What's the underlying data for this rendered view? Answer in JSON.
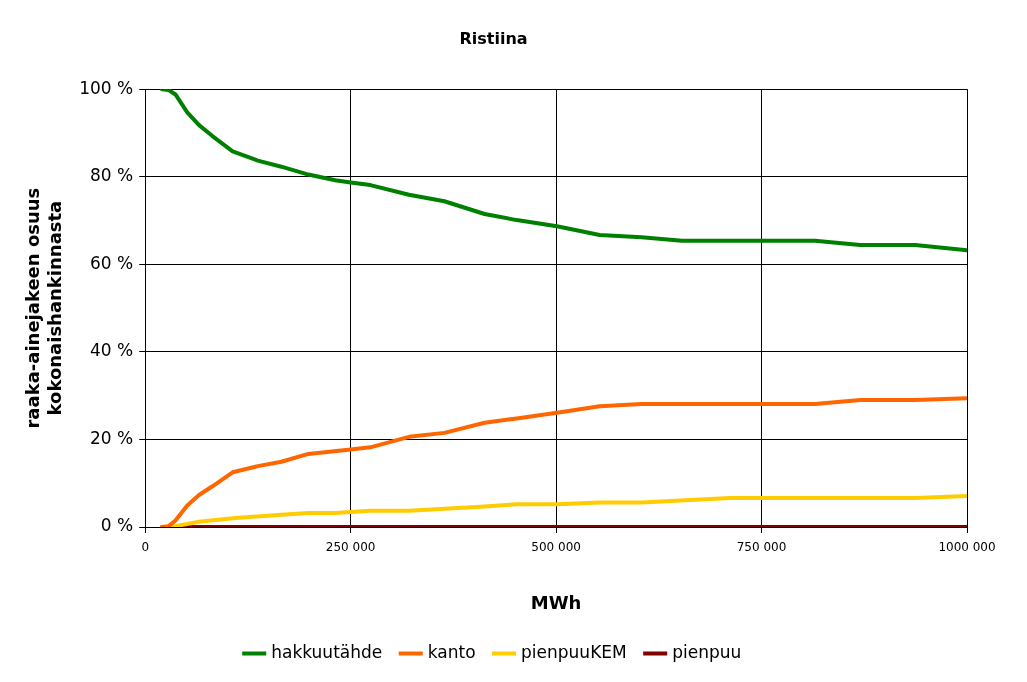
{
  "chart_data": {
    "type": "line",
    "title": "Ristiina",
    "xlabel": "MWh",
    "ylabel": "raaka-ainejakeen osuus kokonaishankinnasta",
    "xlim": [
      0,
      1000000
    ],
    "xticks": [
      0,
      {
        "value": 250000,
        "label": "250 000"
      },
      {
        "value": 500000,
        "label": "500 000"
      },
      {
        "value": 750000,
        "label": "750 000"
      },
      {
        "value": 1000000,
        "label": "1000 000"
      }
    ],
    "ylim": [
      0,
      100
    ],
    "yticks": [
      {
        "value": 0,
        "label": "0 %"
      },
      {
        "value": 20,
        "label": "20 %"
      },
      {
        "value": 40,
        "label": "40 %"
      },
      {
        "value": 60,
        "label": "60 %"
      },
      {
        "value": 80,
        "label": "80 %"
      },
      {
        "value": 100,
        "label": "100 %"
      }
    ],
    "grid": true,
    "legend": "bottom",
    "marker": "none",
    "line_style": "solid",
    "series": [
      {
        "name": "hakkuutähde",
        "color": "#008000",
        "x": [
          20500,
          28600,
          36800,
          51150,
          65500,
          81800,
          106400,
          137000,
          165700,
          198500,
          231200,
          250000,
          274000,
          321000,
          364000,
          413000,
          452000,
          501000,
          553000,
          604000,
          653000,
          815000,
          870000,
          937000,
          1000000
        ],
        "values": [
          100,
          99.8,
          98.8,
          94.7,
          91.8,
          89.3,
          85.8,
          83.7,
          82.3,
          80.5,
          79.2,
          78.7,
          78.1,
          75.9,
          74.4,
          71.5,
          70.1,
          68.7,
          66.7,
          66.2,
          65.4,
          65.4,
          64.4,
          64.4,
          63.2
        ]
      },
      {
        "name": "kanto",
        "color": "#ff6600",
        "x": [
          20500,
          28600,
          36800,
          51150,
          65500,
          81800,
          106400,
          137000,
          165700,
          198500,
          250000,
          274000,
          321000,
          364000,
          413000,
          452000,
          501000,
          553000,
          604000,
          815000,
          870000,
          937000,
          1000000
        ],
        "values": [
          0,
          0.2,
          1.5,
          4.9,
          7.3,
          9.3,
          12.5,
          13.9,
          14.9,
          16.7,
          17.7,
          18.2,
          20.6,
          21.5,
          23.8,
          24.8,
          26.1,
          27.6,
          28.1,
          28.1,
          29,
          29,
          29.4
        ]
      },
      {
        "name": "pienpuuKEM",
        "color": "#ffcc00",
        "x": [
          20500,
          36800,
          65500,
          106400,
          165700,
          198500,
          231200,
          274000,
          321000,
          413000,
          452000,
          501000,
          553000,
          604000,
          711000,
          937000,
          1000000
        ],
        "values": [
          0,
          0.2,
          1.2,
          2,
          2.8,
          3.2,
          3.2,
          3.7,
          3.7,
          4.7,
          5.2,
          5.2,
          5.6,
          5.6,
          6.6,
          6.6,
          7.1
        ]
      },
      {
        "name": "pienpuu",
        "color": "#800000",
        "x": [
          20500,
          1000000
        ],
        "values": [
          0,
          0
        ]
      }
    ]
  }
}
